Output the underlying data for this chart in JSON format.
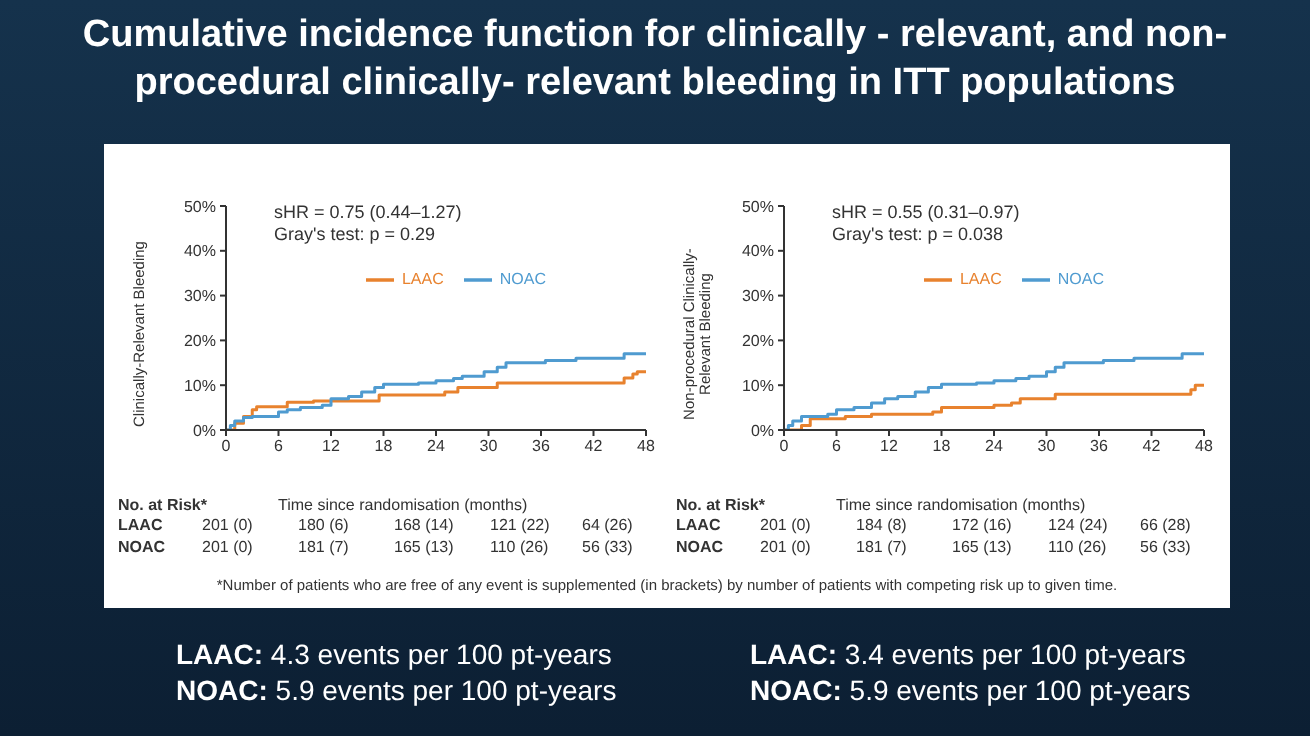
{
  "chart_data": [
    {
      "type": "step",
      "title": "Cumulative incidence function for clinically - relevant, and non-procedural  clinically- relevant bleeding in ITT populations",
      "xlabel": "Time since randomisation  (months)",
      "ylabel": "Clinically-Relevant  Bleeding",
      "xlim": [
        0,
        48
      ],
      "xticks": [
        0,
        6,
        12,
        18,
        24,
        30,
        36,
        42,
        48
      ],
      "ylim": [
        0,
        50
      ],
      "yticks": [
        {
          "value": 0,
          "label": "0%"
        },
        {
          "value": 10,
          "label": "10%"
        },
        {
          "value": 20,
          "label": "20%"
        },
        {
          "value": 30,
          "label": "30%"
        },
        {
          "value": 40,
          "label": "40%"
        },
        {
          "value": 50,
          "label": "50%"
        }
      ],
      "legend": "top",
      "series": [
        {
          "name": "LAAC",
          "color": "#e8822e",
          "x": [
            0,
            1,
            2,
            3,
            3.5,
            7,
            10,
            12.3,
            17.5,
            25,
            26.5,
            31,
            45.5,
            46.5,
            47,
            48
          ],
          "values": [
            0,
            1.5,
            3,
            4.5,
            5.2,
            6.2,
            6.5,
            6.5,
            7.8,
            8.5,
            9.5,
            10.5,
            11.6,
            12.5,
            13,
            13
          ]
        },
        {
          "name": "NOAC",
          "color": "#4f9bd0",
          "x": [
            0,
            0.5,
            1,
            2,
            3,
            6,
            7,
            8.5,
            11,
            12,
            14,
            15.5,
            17,
            18,
            22,
            24,
            26,
            27,
            29.5,
            31,
            32,
            36.5,
            40,
            45.5,
            48
          ],
          "values": [
            0,
            1,
            2,
            2.8,
            3,
            4,
            4.5,
            5,
            5.5,
            7,
            7.5,
            8.5,
            9.5,
            10.2,
            10.5,
            11,
            11.5,
            12,
            13,
            14,
            15,
            15.5,
            16,
            17,
            17
          ]
        }
      ],
      "annotations": [
        "sHR = 0.75 (0.44–1.27)",
        "Gray's test: p = 0.29",
        "No. at Risk*",
        "LAAC",
        "201 (0)",
        "180 (6)",
        "168 (14)",
        "121 (22)",
        "64 (26)",
        "NOAC",
        "201 (0)",
        "181 (7)",
        "165 (13)",
        "110 (26)",
        "56 (33)",
        "LAAC: 4.3 events per 100 pt-years",
        "NOAC: 5.9 events per 100 pt-years",
        "*Number of patients who are free of any event is supplemented (in brackets) by number of patients with competing risk up to given time."
      ]
    },
    {
      "type": "step",
      "xlabel": "Time since randomisation  (months)",
      "ylabel": "Non-procedural  Clinically-Relevant  Bleeding",
      "xlim": [
        0,
        48
      ],
      "xticks": [
        0,
        6,
        12,
        18,
        24,
        30,
        36,
        42,
        48
      ],
      "ylim": [
        0,
        50
      ],
      "yticks": [
        {
          "value": 0,
          "label": "0%"
        },
        {
          "value": 10,
          "label": "10%"
        },
        {
          "value": 20,
          "label": "20%"
        },
        {
          "value": 30,
          "label": "30%"
        },
        {
          "value": 40,
          "label": "40%"
        },
        {
          "value": 50,
          "label": "50%"
        }
      ],
      "legend": "top",
      "series": [
        {
          "name": "LAAC",
          "color": "#e8822e",
          "x": [
            0,
            1.5,
            2,
            3,
            7,
            10,
            14,
            17,
            18,
            24,
            26,
            27,
            30,
            31,
            46,
            46.5,
            47,
            48
          ],
          "values": [
            0,
            0,
            1,
            2.5,
            3,
            3.5,
            3.5,
            4,
            5,
            5.5,
            6,
            7,
            7,
            8,
            8,
            9,
            10,
            10
          ]
        },
        {
          "name": "NOAC",
          "color": "#4f9bd0",
          "x": [
            0,
            0.5,
            1,
            2,
            4,
            5,
            6,
            8,
            10,
            11.5,
            13,
            15,
            16.5,
            18,
            22,
            24,
            26.5,
            28,
            30,
            31,
            32,
            36.5,
            40,
            45.5,
            48
          ],
          "values": [
            0,
            1,
            2,
            3,
            3,
            3.5,
            4.5,
            5,
            6,
            7,
            7.5,
            8.5,
            9.5,
            10.2,
            10.5,
            11,
            11.5,
            12,
            13,
            14,
            15,
            15.5,
            16,
            17,
            17
          ]
        }
      ],
      "annotations": [
        "sHR = 0.55 (0.31–0.97)",
        "Gray's test: p = 0.038",
        "No. at Risk*",
        "LAAC",
        "201 (0)",
        "184 (8)",
        "172 (16)",
        "124 (24)",
        "66 (28)",
        "NOAC",
        "201 (0)",
        "181 (7)",
        "165 (13)",
        "110 (26)",
        "56 (33)",
        "LAAC: 3.4 events per 100 pt-years",
        "NOAC: 5.9 events per 100 pt-years"
      ]
    }
  ]
}
